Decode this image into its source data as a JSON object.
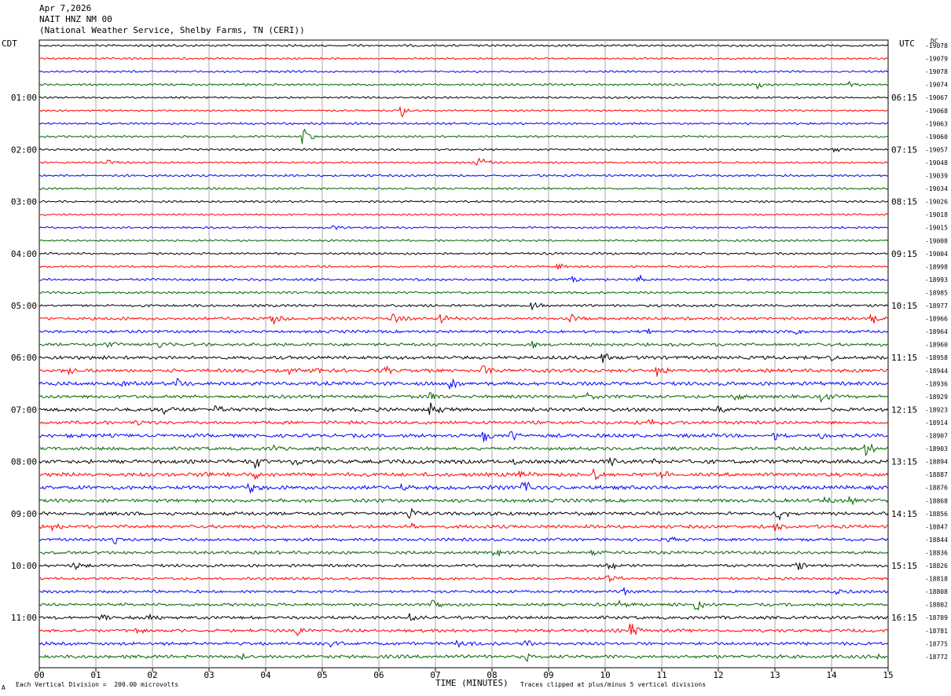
{
  "header": {
    "date": "Apr 7,2026",
    "station": "NAIT HNZ NM 00",
    "location": "(National Weather Service, Shelby Farms, TN (CERI))"
  },
  "left_tz": "CDT",
  "right_tz": "UTC",
  "top_right_corner": "DC",
  "footer": {
    "scale_note": "Each Vertical Division =  200.00 microvolts",
    "xlabel": "TIME (MINUTES)",
    "clip_note": "Traces clipped at plus/minus 5 vertical divisions",
    "corner_mark": "A"
  },
  "chart_data": {
    "type": "line",
    "title": "",
    "xlabel": "TIME (MINUTES)",
    "xlim": [
      0,
      15
    ],
    "x_ticks": [
      "00",
      "01",
      "02",
      "03",
      "04",
      "05",
      "06",
      "07",
      "08",
      "09",
      "10",
      "11",
      "12",
      "13",
      "14",
      "15"
    ],
    "grid": true,
    "trace_colors": [
      "#000000",
      "#ff0000",
      "#0000ff",
      "#006400"
    ],
    "left_hour_labels": [
      {
        "row": 4,
        "label": "01:00"
      },
      {
        "row": 8,
        "label": "02:00"
      },
      {
        "row": 12,
        "label": "03:00"
      },
      {
        "row": 16,
        "label": "04:00"
      },
      {
        "row": 20,
        "label": "05:00"
      },
      {
        "row": 24,
        "label": "06:00"
      },
      {
        "row": 28,
        "label": "07:00"
      },
      {
        "row": 32,
        "label": "08:00"
      },
      {
        "row": 36,
        "label": "09:00"
      },
      {
        "row": 40,
        "label": "10:00"
      },
      {
        "row": 44,
        "label": "11:00"
      }
    ],
    "right_hour_labels": [
      {
        "row": 4,
        "label": "06:15"
      },
      {
        "row": 8,
        "label": "07:15"
      },
      {
        "row": 12,
        "label": "08:15"
      },
      {
        "row": 16,
        "label": "09:15"
      },
      {
        "row": 20,
        "label": "10:15"
      },
      {
        "row": 24,
        "label": "11:15"
      },
      {
        "row": 28,
        "label": "12:15"
      },
      {
        "row": 32,
        "label": "13:15"
      },
      {
        "row": 36,
        "label": "14:15"
      },
      {
        "row": 40,
        "label": "15:15"
      },
      {
        "row": 44,
        "label": "16:15"
      }
    ],
    "dc_offsets": [
      "-19078",
      "-19079",
      "-19078",
      "-19074",
      "-19067",
      "-19068",
      "-19063",
      "-19060",
      "-19057",
      "-19048",
      "-19039",
      "-19034",
      "-19026",
      "-19018",
      "-19015",
      "-19008",
      "-19004",
      "-18998",
      "-18993",
      "-18985",
      "-18977",
      "-18966",
      "-18964",
      "-18960",
      "-18958",
      "-18944",
      "-18936",
      "-18929",
      "-18923",
      "-18914",
      "-18907",
      "-18903",
      "-18894",
      "-18887",
      "-18876",
      "-18868",
      "-18856",
      "-18847",
      "-18844",
      "-18836",
      "-18826",
      "-18818",
      "-18808",
      "-18802",
      "-18789",
      "-18781",
      "-18775",
      "-18772"
    ],
    "traces": [
      {
        "row": 0,
        "noise": 0.9,
        "events": []
      },
      {
        "row": 1,
        "noise": 0.7,
        "events": []
      },
      {
        "row": 2,
        "noise": 0.8,
        "events": []
      },
      {
        "row": 3,
        "noise": 0.8,
        "events": [
          {
            "x": 12.7,
            "amp": 2
          },
          {
            "x": 14.3,
            "amp": 2
          }
        ]
      },
      {
        "row": 4,
        "noise": 0.8,
        "events": []
      },
      {
        "row": 5,
        "noise": 0.7,
        "events": [
          {
            "x": 6.4,
            "amp": 3
          }
        ]
      },
      {
        "row": 6,
        "noise": 0.9,
        "events": []
      },
      {
        "row": 7,
        "noise": 0.8,
        "events": [
          {
            "x": 4.65,
            "amp": 4
          }
        ]
      },
      {
        "row": 8,
        "noise": 0.8,
        "events": [
          {
            "x": 14.05,
            "amp": 2
          }
        ]
      },
      {
        "row": 9,
        "noise": 0.7,
        "events": [
          {
            "x": 1.2,
            "amp": 2
          },
          {
            "x": 7.75,
            "amp": 4
          }
        ]
      },
      {
        "row": 10,
        "noise": 0.9,
        "events": []
      },
      {
        "row": 11,
        "noise": 0.8,
        "events": []
      },
      {
        "row": 12,
        "noise": 0.8,
        "events": []
      },
      {
        "row": 13,
        "noise": 0.7,
        "events": []
      },
      {
        "row": 14,
        "noise": 0.8,
        "events": [
          {
            "x": 5.2,
            "amp": 2
          }
        ]
      },
      {
        "row": 15,
        "noise": 0.8,
        "events": []
      },
      {
        "row": 16,
        "noise": 0.9,
        "events": []
      },
      {
        "row": 17,
        "noise": 0.8,
        "events": [
          {
            "x": 9.15,
            "amp": 2
          }
        ]
      },
      {
        "row": 18,
        "noise": 1.0,
        "events": [
          {
            "x": 9.4,
            "amp": 2
          },
          {
            "x": 10.6,
            "amp": 2
          }
        ]
      },
      {
        "row": 19,
        "noise": 0.9,
        "events": []
      },
      {
        "row": 20,
        "noise": 1.2,
        "events": [
          {
            "x": 8.7,
            "amp": 2
          }
        ]
      },
      {
        "row": 21,
        "noise": 1.4,
        "events": [
          {
            "x": 4.1,
            "amp": 4
          },
          {
            "x": 6.25,
            "amp": 3
          },
          {
            "x": 7.1,
            "amp": 3
          },
          {
            "x": 9.4,
            "amp": 2
          },
          {
            "x": 14.7,
            "amp": 3
          }
        ]
      },
      {
        "row": 22,
        "noise": 1.3,
        "events": [
          {
            "x": 10.7,
            "amp": 2
          },
          {
            "x": 13.4,
            "amp": 2
          }
        ]
      },
      {
        "row": 23,
        "noise": 1.5,
        "events": [
          {
            "x": 1.2,
            "amp": 2
          },
          {
            "x": 2.1,
            "amp": 2
          },
          {
            "x": 8.7,
            "amp": 2
          }
        ]
      },
      {
        "row": 24,
        "noise": 1.7,
        "events": [
          {
            "x": 1.1,
            "amp": 2
          },
          {
            "x": 9.95,
            "amp": 3
          },
          {
            "x": 14.0,
            "amp": 2
          }
        ]
      },
      {
        "row": 25,
        "noise": 1.7,
        "events": [
          {
            "x": 0.5,
            "amp": 2
          },
          {
            "x": 4.4,
            "amp": 2
          },
          {
            "x": 4.8,
            "amp": 2
          },
          {
            "x": 6.1,
            "amp": 2
          },
          {
            "x": 7.85,
            "amp": 3
          },
          {
            "x": 10.9,
            "amp": 3
          }
        ]
      },
      {
        "row": 26,
        "noise": 1.8,
        "events": [
          {
            "x": 1.45,
            "amp": 2
          },
          {
            "x": 2.45,
            "amp": 3
          },
          {
            "x": 7.25,
            "amp": 4
          }
        ]
      },
      {
        "row": 27,
        "noise": 1.6,
        "events": [
          {
            "x": 6.9,
            "amp": 2
          },
          {
            "x": 9.7,
            "amp": 2
          },
          {
            "x": 12.3,
            "amp": 2
          },
          {
            "x": 13.8,
            "amp": 3
          }
        ]
      },
      {
        "row": 28,
        "noise": 1.8,
        "events": [
          {
            "x": 2.2,
            "amp": 2
          },
          {
            "x": 3.1,
            "amp": 2
          },
          {
            "x": 6.9,
            "amp": 4
          },
          {
            "x": 12.0,
            "amp": 2
          }
        ]
      },
      {
        "row": 29,
        "noise": 1.6,
        "events": [
          {
            "x": 1.7,
            "amp": 2
          },
          {
            "x": 10.8,
            "amp": 2
          }
        ]
      },
      {
        "row": 30,
        "noise": 1.8,
        "events": [
          {
            "x": 0.5,
            "amp": 2
          },
          {
            "x": 7.85,
            "amp": 4
          },
          {
            "x": 8.35,
            "amp": 3
          },
          {
            "x": 13.0,
            "amp": 2
          },
          {
            "x": 13.8,
            "amp": 2
          }
        ]
      },
      {
        "row": 31,
        "noise": 1.6,
        "events": [
          {
            "x": 4.1,
            "amp": 2
          },
          {
            "x": 14.6,
            "amp": 3
          }
        ]
      },
      {
        "row": 32,
        "noise": 2.0,
        "events": [
          {
            "x": 3.8,
            "amp": 3
          },
          {
            "x": 4.5,
            "amp": 2
          },
          {
            "x": 8.4,
            "amp": 2
          },
          {
            "x": 10.1,
            "amp": 2
          },
          {
            "x": 10.85,
            "amp": 2
          }
        ]
      },
      {
        "row": 33,
        "noise": 2.0,
        "events": [
          {
            "x": 2.95,
            "amp": 2
          },
          {
            "x": 3.8,
            "amp": 3
          },
          {
            "x": 8.5,
            "amp": 2
          },
          {
            "x": 9.8,
            "amp": 3
          },
          {
            "x": 11.0,
            "amp": 2
          }
        ]
      },
      {
        "row": 34,
        "noise": 2.0,
        "events": [
          {
            "x": 3.7,
            "amp": 3
          },
          {
            "x": 6.4,
            "amp": 2
          },
          {
            "x": 8.55,
            "amp": 4
          }
        ]
      },
      {
        "row": 35,
        "noise": 1.7,
        "events": [
          {
            "x": 13.9,
            "amp": 2
          },
          {
            "x": 14.3,
            "amp": 2
          }
        ]
      },
      {
        "row": 36,
        "noise": 1.7,
        "events": [
          {
            "x": 6.55,
            "amp": 3
          },
          {
            "x": 13.05,
            "amp": 3
          }
        ]
      },
      {
        "row": 37,
        "noise": 1.6,
        "events": [
          {
            "x": 0.25,
            "amp": 2
          },
          {
            "x": 6.6,
            "amp": 3
          },
          {
            "x": 13.0,
            "amp": 2
          }
        ]
      },
      {
        "row": 38,
        "noise": 1.4,
        "events": [
          {
            "x": 1.3,
            "amp": 2
          },
          {
            "x": 11.1,
            "amp": 2
          }
        ]
      },
      {
        "row": 39,
        "noise": 1.4,
        "events": [
          {
            "x": 8.05,
            "amp": 2
          },
          {
            "x": 9.75,
            "amp": 2
          }
        ]
      },
      {
        "row": 40,
        "noise": 1.3,
        "events": [
          {
            "x": 0.6,
            "amp": 2
          },
          {
            "x": 10.05,
            "amp": 3
          },
          {
            "x": 13.4,
            "amp": 3
          }
        ]
      },
      {
        "row": 41,
        "noise": 1.2,
        "events": [
          {
            "x": 10.05,
            "amp": 3
          }
        ]
      },
      {
        "row": 42,
        "noise": 1.3,
        "events": [
          {
            "x": 10.3,
            "amp": 2
          },
          {
            "x": 14.1,
            "amp": 2
          }
        ]
      },
      {
        "row": 43,
        "noise": 1.4,
        "events": [
          {
            "x": 6.95,
            "amp": 3
          },
          {
            "x": 10.25,
            "amp": 2
          },
          {
            "x": 11.6,
            "amp": 3
          }
        ]
      },
      {
        "row": 44,
        "noise": 1.5,
        "events": [
          {
            "x": 1.1,
            "amp": 2
          },
          {
            "x": 1.95,
            "amp": 2
          },
          {
            "x": 6.55,
            "amp": 2
          }
        ]
      },
      {
        "row": 45,
        "noise": 1.5,
        "events": [
          {
            "x": 1.7,
            "amp": 2
          },
          {
            "x": 4.55,
            "amp": 3
          },
          {
            "x": 10.45,
            "amp": 4
          }
        ]
      },
      {
        "row": 46,
        "noise": 1.5,
        "events": [
          {
            "x": 5.15,
            "amp": 2
          },
          {
            "x": 7.4,
            "amp": 2
          },
          {
            "x": 8.6,
            "amp": 2
          }
        ]
      },
      {
        "row": 47,
        "noise": 1.6,
        "events": [
          {
            "x": 3.6,
            "amp": 2
          },
          {
            "x": 8.6,
            "amp": 2
          },
          {
            "x": 14.8,
            "amp": 2
          }
        ]
      }
    ]
  }
}
